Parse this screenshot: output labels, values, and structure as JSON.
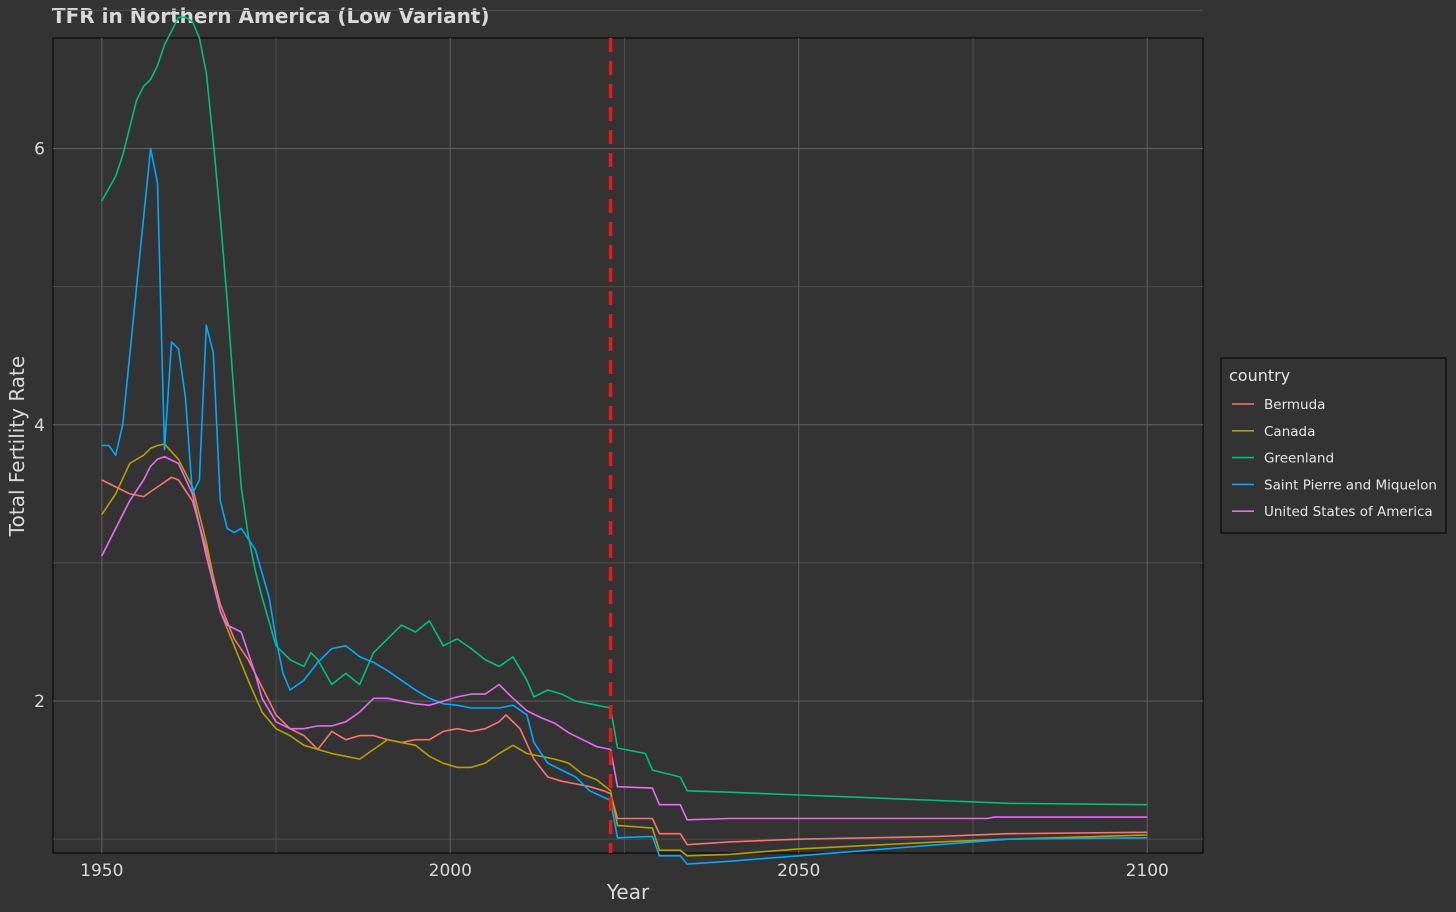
{
  "chart_data": {
    "type": "line",
    "title": "TFR in Northern America (Low Variant)",
    "xlabel": "Year",
    "ylabel": "Total Fertility Rate",
    "xlim": [
      1943,
      2108
    ],
    "ylim": [
      0.9,
      6.8
    ],
    "x_ticks": [
      1950,
      2000,
      2050,
      2100
    ],
    "y_ticks": [
      2,
      4,
      6
    ],
    "x_tick_labels": [
      "1950",
      "2000",
      "2050",
      "2100"
    ],
    "y_tick_labels": [
      "2",
      "4",
      "6"
    ],
    "grid": true,
    "legend": {
      "title": "country",
      "position": "right"
    },
    "vline": {
      "x": 2023,
      "color": "#e41a1c",
      "style": "dashed"
    },
    "series": [
      {
        "name": "Bermuda",
        "color": "#f8766d",
        "points": [
          [
            1950,
            3.6
          ],
          [
            1952,
            3.55
          ],
          [
            1954,
            3.5
          ],
          [
            1956,
            3.48
          ],
          [
            1958,
            3.55
          ],
          [
            1960,
            3.62
          ],
          [
            1961,
            3.6
          ],
          [
            1963,
            3.45
          ],
          [
            1965,
            3.1
          ],
          [
            1967,
            2.7
          ],
          [
            1969,
            2.45
          ],
          [
            1971,
            2.3
          ],
          [
            1973,
            2.1
          ],
          [
            1975,
            1.9
          ],
          [
            1977,
            1.8
          ],
          [
            1979,
            1.75
          ],
          [
            1981,
            1.65
          ],
          [
            1983,
            1.78
          ],
          [
            1985,
            1.72
          ],
          [
            1987,
            1.75
          ],
          [
            1989,
            1.75
          ],
          [
            1991,
            1.72
          ],
          [
            1993,
            1.7
          ],
          [
            1995,
            1.72
          ],
          [
            1997,
            1.72
          ],
          [
            1999,
            1.78
          ],
          [
            2001,
            1.8
          ],
          [
            2003,
            1.78
          ],
          [
            2005,
            1.8
          ],
          [
            2007,
            1.85
          ],
          [
            2008,
            1.9
          ],
          [
            2010,
            1.8
          ],
          [
            2012,
            1.58
          ],
          [
            2014,
            1.45
          ],
          [
            2016,
            1.42
          ],
          [
            2018,
            1.4
          ],
          [
            2020,
            1.38
          ],
          [
            2022,
            1.35
          ],
          [
            2023,
            1.33
          ],
          [
            2024,
            1.15
          ],
          [
            2029,
            1.15
          ],
          [
            2030,
            1.04
          ],
          [
            2033,
            1.04
          ],
          [
            2034,
            0.96
          ],
          [
            2040,
            0.98
          ],
          [
            2050,
            1.0
          ],
          [
            2070,
            1.02
          ],
          [
            2080,
            1.04
          ],
          [
            2100,
            1.05
          ]
        ]
      },
      {
        "name": "Canada",
        "color": "#b79f00",
        "points": [
          [
            1950,
            3.35
          ],
          [
            1952,
            3.5
          ],
          [
            1954,
            3.72
          ],
          [
            1956,
            3.78
          ],
          [
            1957,
            3.83
          ],
          [
            1958,
            3.85
          ],
          [
            1959,
            3.86
          ],
          [
            1961,
            3.75
          ],
          [
            1963,
            3.55
          ],
          [
            1965,
            3.15
          ],
          [
            1967,
            2.65
          ],
          [
            1969,
            2.4
          ],
          [
            1971,
            2.15
          ],
          [
            1973,
            1.92
          ],
          [
            1975,
            1.8
          ],
          [
            1977,
            1.75
          ],
          [
            1979,
            1.68
          ],
          [
            1981,
            1.65
          ],
          [
            1983,
            1.62
          ],
          [
            1985,
            1.6
          ],
          [
            1987,
            1.58
          ],
          [
            1989,
            1.65
          ],
          [
            1991,
            1.72
          ],
          [
            1993,
            1.7
          ],
          [
            1995,
            1.68
          ],
          [
            1997,
            1.6
          ],
          [
            1999,
            1.55
          ],
          [
            2001,
            1.52
          ],
          [
            2003,
            1.52
          ],
          [
            2005,
            1.55
          ],
          [
            2007,
            1.62
          ],
          [
            2009,
            1.68
          ],
          [
            2011,
            1.62
          ],
          [
            2013,
            1.6
          ],
          [
            2015,
            1.58
          ],
          [
            2017,
            1.55
          ],
          [
            2019,
            1.47
          ],
          [
            2021,
            1.43
          ],
          [
            2023,
            1.35
          ],
          [
            2024,
            1.1
          ],
          [
            2029,
            1.08
          ],
          [
            2030,
            0.92
          ],
          [
            2033,
            0.92
          ],
          [
            2034,
            0.88
          ],
          [
            2040,
            0.89
          ],
          [
            2050,
            0.93
          ],
          [
            2070,
            0.98
          ],
          [
            2080,
            1.0
          ],
          [
            2100,
            1.03
          ]
        ]
      },
      {
        "name": "Greenland",
        "color": "#00bf7d",
        "points": [
          [
            1950,
            5.62
          ],
          [
            1952,
            5.8
          ],
          [
            1953,
            5.95
          ],
          [
            1955,
            6.35
          ],
          [
            1956,
            6.45
          ],
          [
            1957,
            6.5
          ],
          [
            1958,
            6.6
          ],
          [
            1959,
            6.75
          ],
          [
            1960,
            6.85
          ],
          [
            1961,
            6.95
          ],
          [
            1962,
            6.95
          ],
          [
            1963,
            6.92
          ],
          [
            1964,
            6.8
          ],
          [
            1965,
            6.55
          ],
          [
            1966,
            6.05
          ],
          [
            1967,
            5.5
          ],
          [
            1968,
            4.9
          ],
          [
            1969,
            4.2
          ],
          [
            1970,
            3.55
          ],
          [
            1971,
            3.2
          ],
          [
            1972,
            2.95
          ],
          [
            1973,
            2.75
          ],
          [
            1975,
            2.4
          ],
          [
            1977,
            2.3
          ],
          [
            1979,
            2.25
          ],
          [
            1980,
            2.35
          ],
          [
            1981,
            2.3
          ],
          [
            1983,
            2.12
          ],
          [
            1985,
            2.2
          ],
          [
            1987,
            2.12
          ],
          [
            1989,
            2.35
          ],
          [
            1991,
            2.45
          ],
          [
            1993,
            2.55
          ],
          [
            1995,
            2.5
          ],
          [
            1997,
            2.58
          ],
          [
            1999,
            2.4
          ],
          [
            2001,
            2.45
          ],
          [
            2003,
            2.38
          ],
          [
            2005,
            2.3
          ],
          [
            2007,
            2.25
          ],
          [
            2009,
            2.32
          ],
          [
            2011,
            2.15
          ],
          [
            2012,
            2.03
          ],
          [
            2014,
            2.08
          ],
          [
            2016,
            2.05
          ],
          [
            2018,
            2.0
          ],
          [
            2020,
            1.98
          ],
          [
            2023,
            1.95
          ],
          [
            2024,
            1.66
          ],
          [
            2028,
            1.62
          ],
          [
            2029,
            1.5
          ],
          [
            2033,
            1.45
          ],
          [
            2034,
            1.35
          ],
          [
            2040,
            1.34
          ],
          [
            2050,
            1.32
          ],
          [
            2060,
            1.3
          ],
          [
            2070,
            1.28
          ],
          [
            2080,
            1.26
          ],
          [
            2100,
            1.25
          ]
        ]
      },
      {
        "name": "Saint Pierre and Miquelon",
        "color": "#00a9ff",
        "points": [
          [
            1950,
            3.85
          ],
          [
            1951,
            3.85
          ],
          [
            1952,
            3.78
          ],
          [
            1953,
            4.0
          ],
          [
            1954,
            4.5
          ],
          [
            1955,
            5.0
          ],
          [
            1956,
            5.5
          ],
          [
            1957,
            6.0
          ],
          [
            1958,
            5.75
          ],
          [
            1959,
            3.82
          ],
          [
            1960,
            4.6
          ],
          [
            1961,
            4.55
          ],
          [
            1962,
            4.2
          ],
          [
            1963,
            3.5
          ],
          [
            1964,
            3.6
          ],
          [
            1965,
            4.72
          ],
          [
            1966,
            4.52
          ],
          [
            1967,
            3.45
          ],
          [
            1968,
            3.25
          ],
          [
            1969,
            3.22
          ],
          [
            1970,
            3.25
          ],
          [
            1972,
            3.1
          ],
          [
            1974,
            2.75
          ],
          [
            1975,
            2.45
          ],
          [
            1976,
            2.2
          ],
          [
            1977,
            2.08
          ],
          [
            1979,
            2.15
          ],
          [
            1981,
            2.28
          ],
          [
            1983,
            2.38
          ],
          [
            1985,
            2.4
          ],
          [
            1987,
            2.32
          ],
          [
            1989,
            2.28
          ],
          [
            1991,
            2.22
          ],
          [
            1993,
            2.15
          ],
          [
            1995,
            2.08
          ],
          [
            1997,
            2.02
          ],
          [
            1999,
            1.98
          ],
          [
            2001,
            1.97
          ],
          [
            2003,
            1.95
          ],
          [
            2005,
            1.95
          ],
          [
            2007,
            1.95
          ],
          [
            2009,
            1.97
          ],
          [
            2011,
            1.9
          ],
          [
            2012,
            1.7
          ],
          [
            2014,
            1.55
          ],
          [
            2016,
            1.5
          ],
          [
            2018,
            1.45
          ],
          [
            2020,
            1.35
          ],
          [
            2023,
            1.28
          ],
          [
            2024,
            1.01
          ],
          [
            2029,
            1.02
          ],
          [
            2030,
            0.88
          ],
          [
            2033,
            0.88
          ],
          [
            2034,
            0.82
          ],
          [
            2040,
            0.84
          ],
          [
            2050,
            0.88
          ],
          [
            2070,
            0.96
          ],
          [
            2080,
            1.0
          ],
          [
            2100,
            1.01
          ]
        ]
      },
      {
        "name": "United States of America",
        "color": "#e76bf3",
        "points": [
          [
            1950,
            3.05
          ],
          [
            1952,
            3.25
          ],
          [
            1954,
            3.45
          ],
          [
            1956,
            3.6
          ],
          [
            1957,
            3.7
          ],
          [
            1958,
            3.75
          ],
          [
            1959,
            3.77
          ],
          [
            1961,
            3.72
          ],
          [
            1963,
            3.5
          ],
          [
            1965,
            3.05
          ],
          [
            1967,
            2.65
          ],
          [
            1968,
            2.55
          ],
          [
            1970,
            2.5
          ],
          [
            1972,
            2.2
          ],
          [
            1973,
            2.02
          ],
          [
            1975,
            1.85
          ],
          [
            1977,
            1.8
          ],
          [
            1979,
            1.8
          ],
          [
            1981,
            1.82
          ],
          [
            1983,
            1.82
          ],
          [
            1985,
            1.85
          ],
          [
            1987,
            1.92
          ],
          [
            1989,
            2.02
          ],
          [
            1991,
            2.02
          ],
          [
            1993,
            2.0
          ],
          [
            1995,
            1.98
          ],
          [
            1997,
            1.97
          ],
          [
            1999,
            2.0
          ],
          [
            2001,
            2.03
          ],
          [
            2003,
            2.05
          ],
          [
            2005,
            2.05
          ],
          [
            2007,
            2.12
          ],
          [
            2009,
            2.02
          ],
          [
            2011,
            1.93
          ],
          [
            2013,
            1.88
          ],
          [
            2015,
            1.84
          ],
          [
            2017,
            1.77
          ],
          [
            2019,
            1.72
          ],
          [
            2021,
            1.67
          ],
          [
            2023,
            1.65
          ],
          [
            2024,
            1.38
          ],
          [
            2029,
            1.37
          ],
          [
            2030,
            1.25
          ],
          [
            2033,
            1.25
          ],
          [
            2034,
            1.14
          ],
          [
            2040,
            1.15
          ],
          [
            2060,
            1.15
          ],
          [
            2077,
            1.15
          ],
          [
            2078,
            1.16
          ],
          [
            2100,
            1.16
          ]
        ]
      }
    ]
  }
}
